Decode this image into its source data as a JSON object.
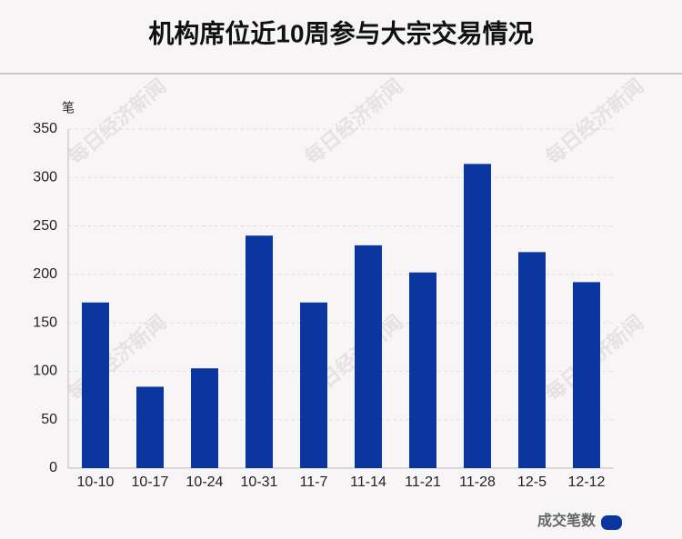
{
  "chart_data": {
    "type": "bar",
    "title": "机构席位近10周参与大宗交易情况",
    "y_unit_label": "笔",
    "categories": [
      "10-10",
      "10-17",
      "10-24",
      "10-31",
      "11-7",
      "11-14",
      "11-21",
      "11-28",
      "12-5",
      "12-12"
    ],
    "series": [
      {
        "name": "成交笔数",
        "color": "#0b36a0",
        "values": [
          171,
          84,
          103,
          240,
          171,
          230,
          202,
          314,
          223,
          192
        ]
      }
    ],
    "ylim": [
      0,
      350
    ],
    "yticks": [
      0,
      50,
      100,
      150,
      200,
      250,
      300,
      350
    ],
    "grid": true,
    "legend": "bottom-right",
    "watermark": "每日经济新闻"
  }
}
